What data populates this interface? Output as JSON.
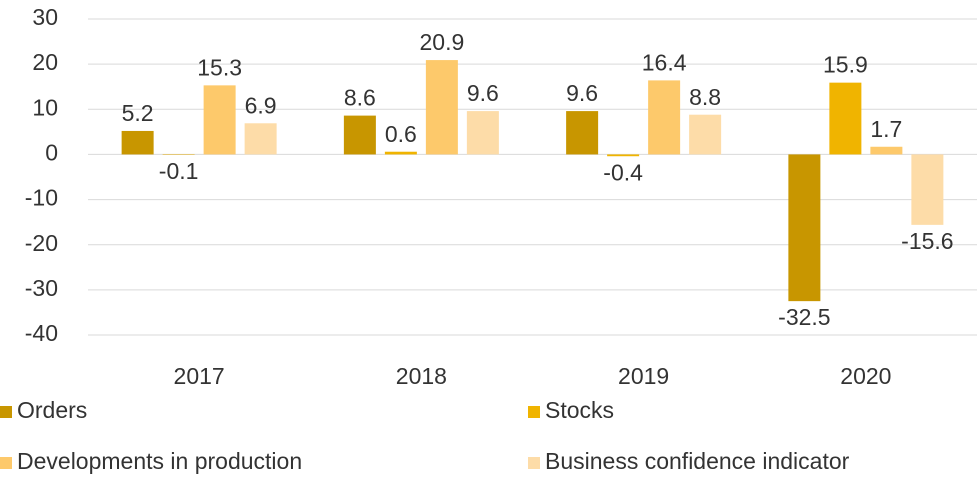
{
  "chart_data": {
    "type": "bar",
    "categories": [
      "2017",
      "2018",
      "2019",
      "2020"
    ],
    "series": [
      {
        "name": "Orders",
        "color": "#c89600",
        "values": [
          5.2,
          8.6,
          9.6,
          -32.5
        ]
      },
      {
        "name": "Stocks",
        "color": "#f0b400",
        "values": [
          -0.1,
          0.6,
          -0.4,
          15.9
        ]
      },
      {
        "name": "Developments in production",
        "color": "#fdc96b",
        "values": [
          15.3,
          20.9,
          16.4,
          1.7
        ]
      },
      {
        "name": "Business confidence indicator",
        "color": "#fddca8",
        "values": [
          6.9,
          9.6,
          8.8,
          -15.6
        ]
      }
    ],
    "ylim": [
      -40,
      30
    ],
    "yticks": [
      -40,
      -30,
      -20,
      -10,
      0,
      10,
      20,
      30
    ],
    "grid": true,
    "legend": "bottom"
  }
}
